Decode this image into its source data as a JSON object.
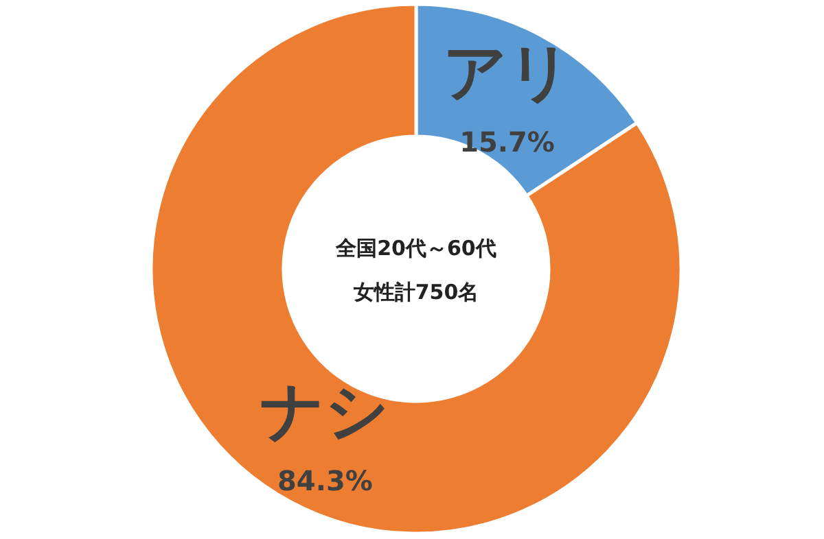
{
  "chart_data": {
    "type": "donut",
    "categories": [
      "アリ",
      "ナシ"
    ],
    "values": [
      15.7,
      84.3
    ],
    "value_labels": [
      "15.7%",
      "84.3%"
    ],
    "colors": [
      "#5b9bd5",
      "#ed7d31"
    ],
    "annotations": [
      "全国20代～60代",
      "女性計750名"
    ]
  }
}
